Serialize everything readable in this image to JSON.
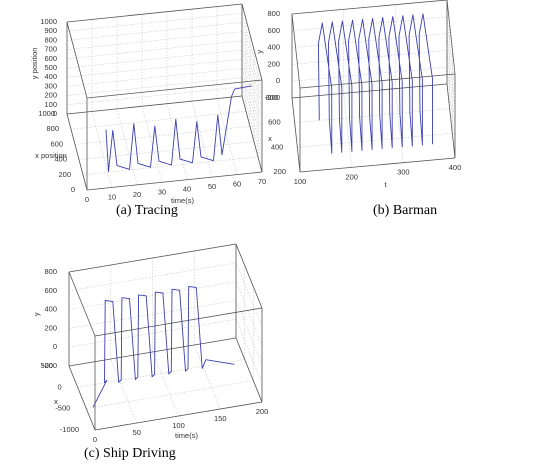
{
  "chart_data": [
    {
      "type": "line3d",
      "caption": "(a) Tracing",
      "title": "",
      "axes": {
        "x": {
          "label": "time(s)",
          "range": [
            0,
            70
          ],
          "ticks": [
            "0",
            "10",
            "20",
            "30",
            "40",
            "50",
            "60",
            "70"
          ]
        },
        "y": {
          "label": "x position",
          "range": [
            0,
            1000
          ],
          "ticks": [
            "0",
            "200",
            "400",
            "600",
            "800",
            "1000"
          ]
        },
        "z": {
          "label": "y position",
          "range": [
            0,
            1000
          ],
          "ticks": [
            "0",
            "100",
            "200",
            "300",
            "400",
            "500",
            "600",
            "700",
            "800",
            "900",
            "1000"
          ]
        }
      },
      "grid": true,
      "series_color": "#3b3fb0"
    },
    {
      "type": "line3d",
      "caption": "(b) Barman",
      "title": "",
      "axes": {
        "x": {
          "label": "t",
          "range": [
            0,
            400
          ],
          "ticks": [
            "100",
            "200",
            "300",
            "400"
          ]
        },
        "y": {
          "label": "x",
          "range": [
            200,
            900
          ],
          "ticks": [
            "200",
            "400",
            "600",
            "800"
          ]
        },
        "z": {
          "label": "y",
          "range": [
            -200,
            800
          ],
          "ticks": [
            "-200",
            "0",
            "200",
            "400",
            "600",
            "800"
          ]
        }
      },
      "grid": true,
      "series_color": "#3b3fb0"
    },
    {
      "type": "line3d",
      "caption": "(c) Ship Driving",
      "title": "",
      "axes": {
        "x": {
          "label": "time(s)",
          "range": [
            0,
            200
          ],
          "ticks": [
            "0",
            "50",
            "100",
            "150",
            "200"
          ]
        },
        "y": {
          "label": "x",
          "range": [
            -1000,
            1000
          ],
          "ticks": [
            "-1000",
            "-500",
            "0",
            "500"
          ]
        },
        "z": {
          "label": "y",
          "range": [
            -200,
            800
          ],
          "ticks": [
            "-200",
            "0",
            "200",
            "400",
            "600",
            "800"
          ]
        }
      },
      "grid": true,
      "series_color": "#3b3fb0"
    }
  ]
}
